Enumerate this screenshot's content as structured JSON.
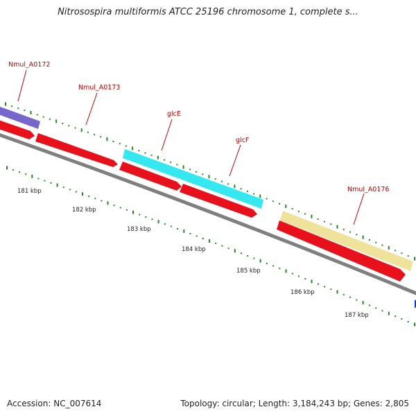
{
  "title": "Nitrosospira multiformis ATCC 25196 chromosome 1, complete s...",
  "footer": {
    "accession": "Accession: NC_007614",
    "summary": "Topology: circular; Length: 3,184,243 bp; Genes: 2,805"
  },
  "colors": {
    "backbone": "#7f7f7f",
    "cds": "#e8101a",
    "gene_purple": "#7766cc",
    "gene_cyan": "#33e8ee",
    "gene_yellow": "#efe29a",
    "gene_blue": "#1a2fcc",
    "tick": "#1f8a1f",
    "label": "#c00000"
  },
  "genes": [
    {
      "name": "Nmul_A0172",
      "feature": "gene",
      "color": "#7766cc"
    },
    {
      "name": "Nmul_A0173",
      "feature": "cds",
      "color": "#e8101a"
    },
    {
      "name": "glcE",
      "feature": "gene",
      "color": "#33e8ee"
    },
    {
      "name": "glcF",
      "feature": "gene",
      "color": "#33e8ee"
    },
    {
      "name": "Nmul_A0176",
      "feature": "gene",
      "color": "#efe29a"
    }
  ],
  "scale_labels": [
    "181 kbp",
    "182 kbp",
    "183 kbp",
    "184 kbp",
    "185 kbp",
    "186 kbp",
    "187 kbp"
  ]
}
